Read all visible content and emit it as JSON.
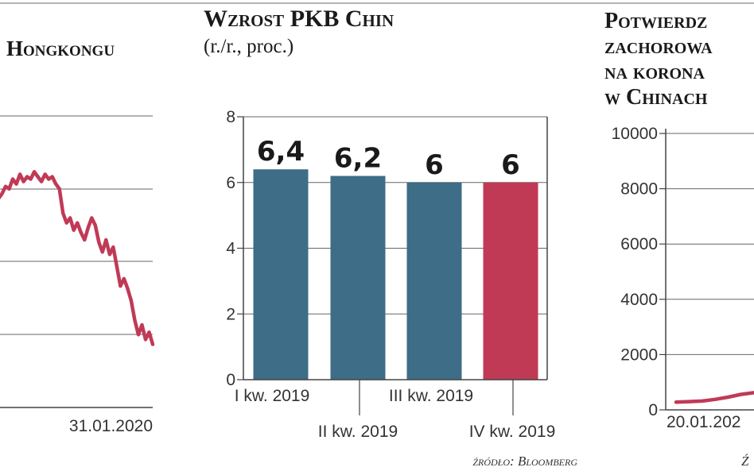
{
  "chart_data": [
    {
      "type": "line",
      "title": "Hongkongu",
      "x_label_end": "31.01.2020",
      "y": [
        24.6,
        24.8,
        25.1,
        25.0,
        25.4,
        25.2,
        25.6,
        25.3,
        25.5,
        25.4,
        25.7,
        25.5,
        25.3,
        25.6,
        25.4,
        25.5,
        25.2,
        25.0,
        24.0,
        23.6,
        23.8,
        23.3,
        23.6,
        23.2,
        22.9,
        23.4,
        23.8,
        23.5,
        22.8,
        22.4,
        22.9,
        22.3,
        22.6,
        21.8,
        21.0,
        21.3,
        20.9,
        20.4,
        19.6,
        19.0,
        19.4,
        18.8,
        19.1,
        18.6
      ]
    },
    {
      "type": "bar",
      "title": "Wzrost PKB Chin",
      "subtitle": "(r./r., proc.)",
      "categories": [
        "I kw. 2019",
        "II kw. 2019",
        "III kw. 2019",
        "IV kw. 2019"
      ],
      "values": [
        6.4,
        6.2,
        6,
        6
      ],
      "value_labels": [
        "6,4",
        "6,2",
        "6",
        "6"
      ],
      "colors": [
        "#3d6d87",
        "#3d6d87",
        "#3d6d87",
        "#c03a56"
      ],
      "ylim": [
        0,
        8
      ],
      "yticks": [
        "0",
        "2",
        "4",
        "6",
        "8"
      ],
      "source": "źródło: Bloomberg"
    },
    {
      "type": "line",
      "title_lines": [
        "Potwierdz",
        "zachorowa",
        "na korona",
        "w Chinach"
      ],
      "ylim": [
        0,
        10000
      ],
      "yticks": [
        "0",
        "2000",
        "4000",
        "6000",
        "8000",
        "10000"
      ],
      "x_label_start": "20.01.202",
      "y": [
        280,
        300,
        320,
        380,
        460,
        560,
        620
      ],
      "source_fragment": "Ź"
    }
  ],
  "colors": {
    "line": "#c03a56",
    "bar_main": "#3d6d87",
    "bar_highlight": "#c03a56"
  }
}
